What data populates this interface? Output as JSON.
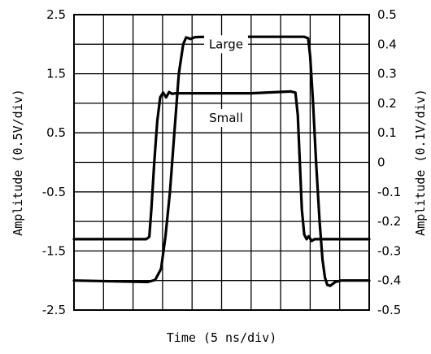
{
  "chart_data": {
    "type": "line",
    "title": "",
    "xlabel": "Time (5 ns/div)",
    "ylabel_left": "Amplitude (0.5V/div)",
    "ylabel_right": "Amplitude (0.1V/div)",
    "xlim": [
      0,
      10
    ],
    "ylim_left": [
      -2.5,
      2.5
    ],
    "ylim_right": [
      -0.5,
      0.5
    ],
    "yticks_left": [
      "2.5",
      "1.5",
      "0.5",
      "-0.5",
      "-1.5",
      "-2.5"
    ],
    "yticks_right": [
      "0.5",
      "0.4",
      "0.3",
      "0.2",
      "0.1",
      "0",
      "-0.1",
      "-0.2",
      "-0.3",
      "-0.4",
      "-0.5"
    ],
    "grid": true,
    "grid_divisions": {
      "x": 10,
      "y": 10
    },
    "annotations": [
      {
        "text": "Large",
        "x": 5.15,
        "y": 0.4
      },
      {
        "text": "Small",
        "x": 5.15,
        "y": 0.15
      }
    ],
    "series": [
      {
        "name": "Large",
        "axis": "right",
        "points": [
          [
            0,
            -0.4
          ],
          [
            2.5,
            -0.405
          ],
          [
            2.75,
            -0.398
          ],
          [
            2.95,
            -0.36
          ],
          [
            3.1,
            -0.25
          ],
          [
            3.25,
            -0.1
          ],
          [
            3.4,
            0.1
          ],
          [
            3.55,
            0.3
          ],
          [
            3.7,
            0.4
          ],
          [
            3.8,
            0.423
          ],
          [
            3.95,
            0.418
          ],
          [
            4.1,
            0.424
          ],
          [
            4.5,
            0.425
          ],
          [
            7.8,
            0.425
          ],
          [
            7.93,
            0.42
          ],
          [
            8.0,
            0.36
          ],
          [
            8.1,
            0.2
          ],
          [
            8.2,
            0.0
          ],
          [
            8.32,
            -0.2
          ],
          [
            8.42,
            -0.33
          ],
          [
            8.5,
            -0.39
          ],
          [
            8.58,
            -0.415
          ],
          [
            8.68,
            -0.418
          ],
          [
            8.85,
            -0.405
          ],
          [
            9.05,
            -0.4
          ],
          [
            10,
            -0.4
          ]
        ]
      },
      {
        "name": "Small",
        "axis": "left",
        "points": [
          [
            0,
            -1.3
          ],
          [
            2.45,
            -1.3
          ],
          [
            2.55,
            -1.26
          ],
          [
            2.62,
            -0.8
          ],
          [
            2.72,
            0.0
          ],
          [
            2.82,
            0.7
          ],
          [
            2.92,
            1.1
          ],
          [
            3.02,
            1.18
          ],
          [
            3.12,
            1.1
          ],
          [
            3.22,
            1.19
          ],
          [
            3.32,
            1.16
          ],
          [
            3.45,
            1.17
          ],
          [
            6.0,
            1.17
          ],
          [
            7.35,
            1.2
          ],
          [
            7.5,
            1.18
          ],
          [
            7.58,
            0.8
          ],
          [
            7.65,
            0.0
          ],
          [
            7.72,
            -0.8
          ],
          [
            7.8,
            -1.22
          ],
          [
            7.88,
            -1.3
          ],
          [
            7.95,
            -1.25
          ],
          [
            8.05,
            -1.33
          ],
          [
            8.15,
            -1.3
          ],
          [
            8.3,
            -1.3
          ],
          [
            10,
            -1.3
          ]
        ]
      }
    ]
  }
}
